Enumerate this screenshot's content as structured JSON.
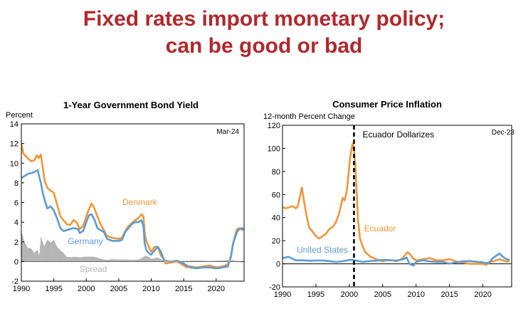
{
  "slide": {
    "title_line1": "Fixed rates import monetary policy;",
    "title_line2": "can be good or bad"
  },
  "chart_data": [
    {
      "type": "line",
      "title": "1-Year Government Bond Yield",
      "ylabel": "Percent",
      "note": "Mar-24",
      "xlim": [
        1990,
        2024.3
      ],
      "ylim": [
        -2,
        14
      ],
      "xticks": [
        1990,
        1995,
        2000,
        2005,
        2010,
        2015,
        2020
      ],
      "yticks": [
        -2,
        0,
        2,
        4,
        6,
        8,
        10,
        12,
        14
      ],
      "colors": {
        "Denmark": "#f0953a",
        "Germany": "#5b9bd5",
        "Spread": "#b4b4b4"
      },
      "series": [
        {
          "name": "Denmark",
          "x": [
            1990.0,
            1990.3,
            1990.7,
            1991.0,
            1991.5,
            1992.0,
            1992.4,
            1992.7,
            1993.0,
            1993.3,
            1993.6,
            1994.0,
            1994.5,
            1995.0,
            1995.5,
            1996.0,
            1996.5,
            1997.0,
            1997.5,
            1998.0,
            1998.5,
            1999.0,
            1999.5,
            2000.0,
            2000.4,
            2000.8,
            2001.2,
            2001.7,
            2002.2,
            2002.7,
            2003.2,
            2004.0,
            2005.0,
            2005.5,
            2006.0,
            2006.5,
            2007.0,
            2007.5,
            2008.0,
            2008.5,
            2008.8,
            2009.0,
            2009.3,
            2009.7,
            2010.0,
            2010.5,
            2011.0,
            2011.5,
            2011.9,
            2012.2,
            2013.0,
            2014.0,
            2015.0,
            2015.5,
            2016.0,
            2017.0,
            2018.0,
            2019.0,
            2020.0,
            2021.0,
            2021.8,
            2022.3,
            2022.6,
            2022.9,
            2023.2,
            2023.6,
            2024.0,
            2024.2
          ],
          "values": [
            12.0,
            11.0,
            10.7,
            10.5,
            10.2,
            10.3,
            10.8,
            10.5,
            10.9,
            9.5,
            8.2,
            7.5,
            7.2,
            7.0,
            5.8,
            4.6,
            4.2,
            3.8,
            3.7,
            4.2,
            4.0,
            3.3,
            3.6,
            4.6,
            5.3,
            5.9,
            5.5,
            4.6,
            3.8,
            3.2,
            2.6,
            2.4,
            2.3,
            2.4,
            3.1,
            3.6,
            3.9,
            4.2,
            4.4,
            4.8,
            4.6,
            2.8,
            2.0,
            1.4,
            1.0,
            1.5,
            1.5,
            0.6,
            0.3,
            -0.2,
            -0.1,
            0.0,
            -0.4,
            -0.6,
            -0.5,
            -0.6,
            -0.5,
            -0.4,
            -0.6,
            -0.5,
            -0.3,
            0.5,
            1.8,
            2.6,
            3.3,
            3.4,
            3.2,
            3.3
          ]
        },
        {
          "name": "Germany",
          "x": [
            1990.0,
            1990.5,
            1991.0,
            1991.5,
            1992.0,
            1992.5,
            1993.0,
            1993.3,
            1993.6,
            1994.0,
            1994.5,
            1995.0,
            1995.5,
            1996.0,
            1996.5,
            1997.0,
            1998.0,
            1998.7,
            1999.0,
            1999.5,
            2000.0,
            2000.4,
            2000.8,
            2001.3,
            2001.7,
            2002.2,
            2002.7,
            2003.2,
            2004.0,
            2005.0,
            2005.5,
            2006.0,
            2006.5,
            2007.0,
            2007.5,
            2008.0,
            2008.5,
            2008.8,
            2009.0,
            2009.3,
            2009.7,
            2010.0,
            2011.0,
            2011.5,
            2012.0,
            2013.0,
            2014.0,
            2015.0,
            2016.0,
            2017.0,
            2018.0,
            2019.0,
            2020.0,
            2021.0,
            2021.8,
            2022.3,
            2022.6,
            2022.9,
            2023.2,
            2023.6,
            2024.0,
            2024.2
          ],
          "values": [
            8.5,
            8.7,
            8.9,
            9.0,
            9.1,
            9.3,
            8.0,
            7.0,
            6.2,
            5.4,
            5.6,
            5.2,
            4.4,
            3.4,
            3.1,
            3.2,
            3.4,
            3.3,
            2.9,
            3.1,
            4.0,
            4.7,
            4.8,
            4.2,
            3.4,
            3.2,
            3.0,
            2.3,
            2.1,
            2.1,
            2.2,
            3.0,
            3.4,
            3.8,
            4.0,
            4.0,
            4.2,
            3.6,
            1.8,
            1.1,
            0.8,
            0.7,
            1.5,
            1.0,
            0.1,
            0.0,
            0.1,
            -0.2,
            -0.6,
            -0.7,
            -0.6,
            -0.6,
            -0.7,
            -0.6,
            -0.5,
            0.6,
            1.8,
            2.4,
            3.0,
            3.3,
            3.4,
            3.3
          ]
        },
        {
          "name": "Spread",
          "x": [
            1990,
            1990.5,
            1991,
            1991.5,
            1992,
            1992.5,
            1992.8,
            1993,
            1993.5,
            1994,
            1994.5,
            1995,
            1995.5,
            1996,
            1996.5,
            1997,
            1998,
            1999,
            2000,
            2001,
            2002,
            2003,
            2004,
            2005,
            2006,
            2007,
            2008,
            2008.8,
            2009,
            2009.5,
            2010,
            2011,
            2012,
            2013,
            2014,
            2015,
            2016,
            2017,
            2018,
            2019,
            2020,
            2021,
            2022,
            2023,
            2024
          ],
          "values": [
            3.0,
            2.0,
            1.5,
            1.6,
            1.2,
            2.0,
            1.0,
            3.8,
            2.0,
            2.5,
            2.0,
            2.2,
            1.5,
            1.2,
            1.0,
            0.6,
            0.8,
            0.5,
            0.5,
            0.5,
            0.4,
            0.3,
            0.3,
            0.2,
            0.2,
            0.2,
            0.3,
            0.7,
            0.8,
            0.6,
            0.3,
            0.4,
            0.1,
            0.1,
            0.1,
            -0.1,
            0.1,
            0.1,
            0.1,
            0.1,
            0.1,
            0.1,
            0.2,
            0.1,
            -0.2
          ]
        }
      ]
    },
    {
      "type": "line",
      "title": "Consumer Price Inflation",
      "ylabel": "12-month Percent Change",
      "note": "Dec-23",
      "annotation": "Ecuador Dollarizes",
      "annotation_x": 2000.7,
      "xlim": [
        1990,
        2024.3
      ],
      "ylim": [
        -20,
        120
      ],
      "xticks": [
        1990,
        1995,
        2000,
        2005,
        2010,
        2015,
        2020
      ],
      "ytick_labels": [
        "120",
        "100",
        "80",
        "60",
        "40",
        "20",
        "0",
        "-20"
      ],
      "colors": {
        "Ecuador": "#f0953a",
        "United States": "#5b9bd5"
      },
      "series": [
        {
          "name": "Ecuador",
          "x": [
            1990.0,
            1990.5,
            1991.0,
            1991.5,
            1992.0,
            1992.3,
            1992.6,
            1992.9,
            1993.2,
            1993.6,
            1994.0,
            1994.5,
            1995.0,
            1995.5,
            1996.0,
            1996.5,
            1997.0,
            1997.5,
            1998.0,
            1998.5,
            1999.0,
            1999.3,
            1999.6,
            1999.9,
            2000.1,
            2000.3,
            2000.5,
            2000.7,
            2000.9,
            2001.1,
            2001.3,
            2001.6,
            2002.0,
            2002.4,
            2002.8,
            2003.2,
            2003.6,
            2004.0,
            2004.5,
            2005.0,
            2005.5,
            2006.0,
            2006.5,
            2007.0,
            2007.5,
            2008.0,
            2008.4,
            2008.7,
            2009.0,
            2009.5,
            2010.0,
            2010.5,
            2011.0,
            2012.0,
            2013.0,
            2014.0,
            2015.0,
            2016.0,
            2017.0,
            2018.0,
            2019.0,
            2020.0,
            2020.5,
            2021.0,
            2021.5,
            2022.0,
            2022.5,
            2023.0,
            2023.5,
            2024.0
          ],
          "values": [
            49,
            48,
            49,
            50,
            48,
            50,
            58,
            66,
            55,
            42,
            31,
            28,
            24,
            22,
            24,
            26,
            30,
            32,
            36,
            44,
            57,
            55,
            62,
            78,
            91,
            98,
            104,
            100,
            86,
            62,
            38,
            22,
            15,
            10,
            8,
            6,
            5,
            4,
            3,
            2,
            3,
            3,
            3,
            2,
            3,
            5,
            8,
            10,
            9,
            5,
            3,
            3,
            4,
            5,
            3,
            3,
            4,
            2,
            1,
            0,
            0,
            0,
            -1,
            1,
            2,
            3,
            4,
            3,
            2,
            2
          ]
        },
        {
          "name": "United States",
          "x": [
            1990.0,
            1990.5,
            1990.9,
            1991.3,
            1992.0,
            1993.0,
            1994.0,
            1995.0,
            1996.0,
            1997.0,
            1998.0,
            1999.0,
            2000.0,
            2001.0,
            2002.0,
            2003.0,
            2004.0,
            2005.0,
            2006.0,
            2007.0,
            2008.0,
            2008.6,
            2009.0,
            2009.6,
            2010.0,
            2011.0,
            2012.0,
            2013.0,
            2014.0,
            2015.0,
            2016.0,
            2017.0,
            2018.0,
            2019.0,
            2020.0,
            2020.5,
            2021.0,
            2021.5,
            2022.0,
            2022.5,
            2023.0,
            2023.5,
            2024.0
          ],
          "values": [
            5,
            5.5,
            6,
            5,
            3,
            3,
            2.7,
            2.8,
            2.9,
            2.3,
            1.6,
            2.2,
            3.4,
            2.8,
            1.6,
            2.3,
            2.7,
            3.4,
            3.2,
            2.8,
            3.8,
            5.4,
            0,
            -1.5,
            1.6,
            3.2,
            2.1,
            1.5,
            1.6,
            0.1,
            1.3,
            2.1,
            2.4,
            1.8,
            1.2,
            0.6,
            1.4,
            5,
            7,
            9,
            6,
            4,
            3.5
          ]
        }
      ]
    }
  ]
}
